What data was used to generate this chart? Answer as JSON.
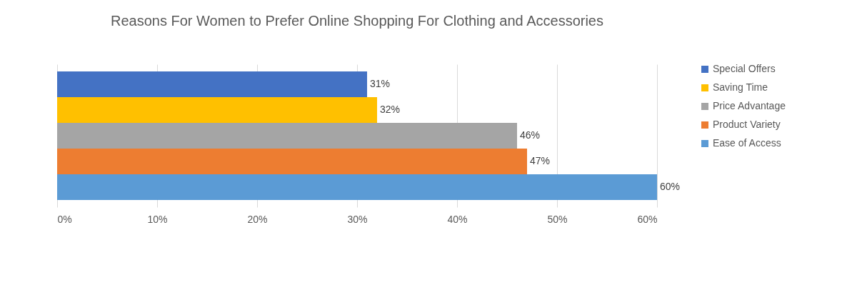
{
  "chart_data": {
    "type": "bar",
    "title": "Reasons For Women to Prefer Online Shopping For Clothing and Accessories",
    "orientation": "horizontal",
    "categories": [
      null
    ],
    "series": [
      {
        "name": "Special Offers",
        "color": "#4472c4",
        "values": [
          31
        ],
        "value_labels": [
          "31%"
        ]
      },
      {
        "name": "Saving Time",
        "color": "#ffc000",
        "values": [
          32
        ],
        "value_labels": [
          "32%"
        ]
      },
      {
        "name": "Price Advantage",
        "color": "#a5a5a5",
        "values": [
          46
        ],
        "value_labels": [
          "46%"
        ]
      },
      {
        "name": "Product Variety",
        "color": "#ed7d31",
        "values": [
          47
        ],
        "value_labels": [
          "47%"
        ]
      },
      {
        "name": "Ease of Access",
        "color": "#5b9bd5",
        "values": [
          60
        ],
        "value_labels": [
          "60%"
        ]
      }
    ],
    "xlim": [
      0,
      60
    ],
    "xticks": [
      {
        "value": 0,
        "label": "0%"
      },
      {
        "value": 10,
        "label": "10%"
      },
      {
        "value": 20,
        "label": "20%"
      },
      {
        "value": 30,
        "label": "30%"
      },
      {
        "value": 40,
        "label": "40%"
      },
      {
        "value": 50,
        "label": "50%"
      },
      {
        "value": 60,
        "label": "60%"
      }
    ],
    "grid": "x",
    "legend": "right"
  }
}
